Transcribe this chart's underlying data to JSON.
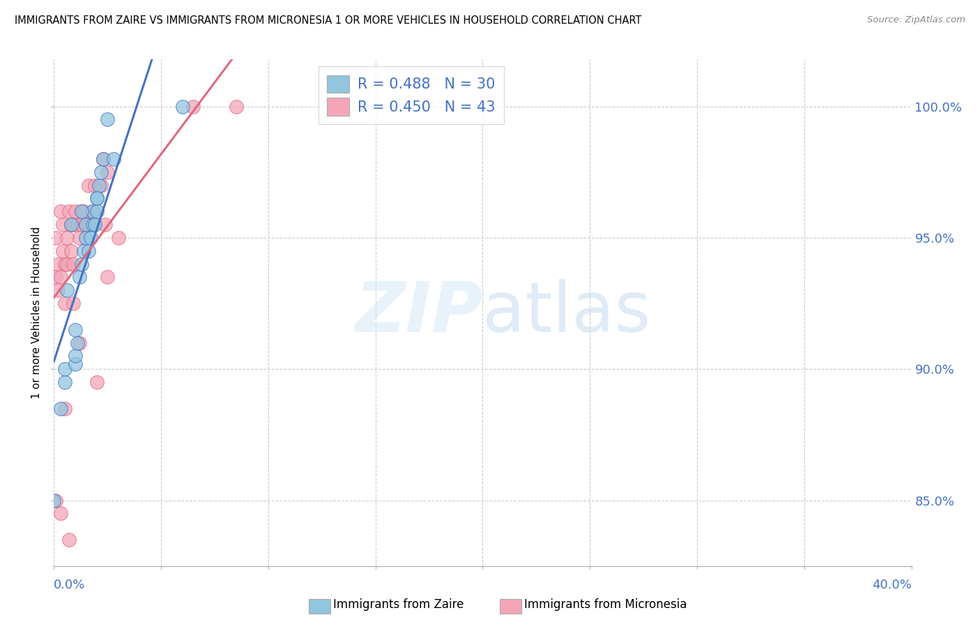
{
  "title": "IMMIGRANTS FROM ZAIRE VS IMMIGRANTS FROM MICRONESIA 1 OR MORE VEHICLES IN HOUSEHOLD CORRELATION CHART",
  "source": "Source: ZipAtlas.com",
  "ylabel": "1 or more Vehicles in Household",
  "watermark_zip": "ZIP",
  "watermark_atlas": "atlas",
  "legend_zaire_R": 0.488,
  "legend_zaire_N": 30,
  "legend_micronesia_R": 0.45,
  "legend_micronesia_N": 43,
  "zaire_color": "#92c5de",
  "micronesia_color": "#f4a6b8",
  "zaire_line_color": "#4472c4",
  "micronesia_line_color": "#e06880",
  "zaire_x": [
    0.0,
    0.5,
    0.5,
    1.0,
    1.0,
    1.0,
    1.1,
    1.2,
    1.3,
    1.4,
    1.5,
    1.5,
    1.6,
    1.7,
    1.8,
    1.8,
    1.9,
    2.0,
    2.0,
    2.1,
    2.2,
    2.3,
    2.5,
    2.8,
    6.0,
    0.3,
    0.6,
    0.8,
    1.3,
    2.0
  ],
  "zaire_y": [
    85.0,
    89.5,
    90.0,
    90.2,
    90.5,
    91.5,
    91.0,
    93.5,
    94.0,
    94.5,
    95.0,
    95.5,
    94.5,
    95.0,
    95.5,
    96.0,
    95.5,
    96.5,
    96.0,
    97.0,
    97.5,
    98.0,
    99.5,
    98.0,
    100.0,
    88.5,
    93.0,
    95.5,
    96.0,
    96.5
  ],
  "micronesia_x": [
    0.1,
    0.1,
    0.2,
    0.2,
    0.3,
    0.3,
    0.4,
    0.4,
    0.5,
    0.5,
    0.6,
    0.6,
    0.7,
    0.8,
    0.8,
    0.9,
    0.9,
    1.0,
    1.1,
    1.2,
    1.3,
    1.3,
    1.4,
    1.5,
    1.6,
    1.6,
    1.8,
    1.9,
    2.2,
    2.3,
    2.4,
    2.5,
    6.5,
    8.5,
    0.1,
    0.3,
    0.5,
    0.7,
    0.9,
    1.2,
    2.0,
    2.5,
    3.0
  ],
  "micronesia_y": [
    93.5,
    95.0,
    93.0,
    94.0,
    93.5,
    96.0,
    94.5,
    95.5,
    92.5,
    94.0,
    94.0,
    95.0,
    96.0,
    94.5,
    95.5,
    94.0,
    95.5,
    96.0,
    95.5,
    95.0,
    95.5,
    96.0,
    96.0,
    95.5,
    95.5,
    97.0,
    96.0,
    97.0,
    97.0,
    98.0,
    95.5,
    97.5,
    100.0,
    100.0,
    85.0,
    84.5,
    88.5,
    83.5,
    92.5,
    91.0,
    89.5,
    93.5,
    95.0
  ],
  "xmin": 0.0,
  "xmax": 40.0,
  "ymin": 82.5,
  "ymax": 101.8,
  "yticks": [
    85.0,
    90.0,
    95.0,
    100.0
  ],
  "xticks": [
    0.0,
    5.0,
    10.0,
    15.0,
    20.0,
    25.0,
    30.0,
    35.0,
    40.0
  ]
}
